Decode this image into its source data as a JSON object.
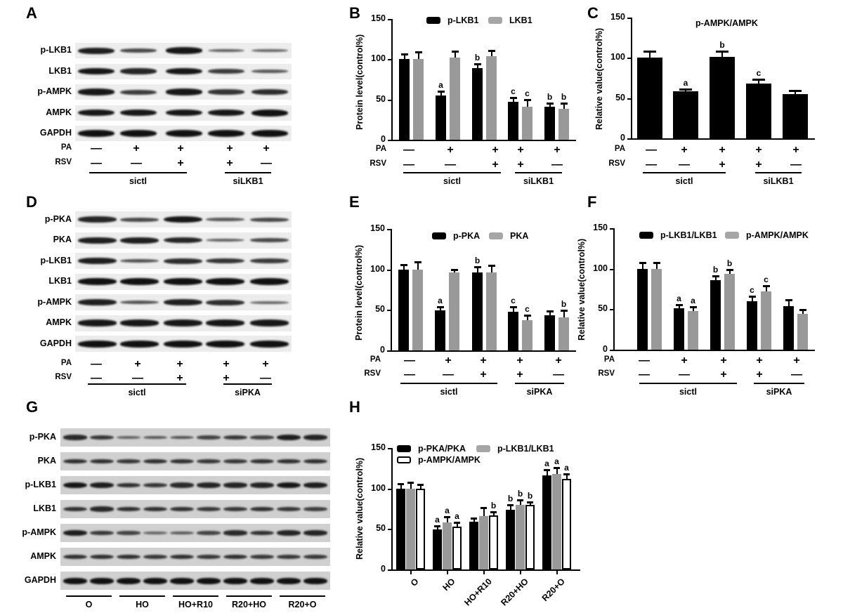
{
  "panels": {
    "A": {
      "letter": "A",
      "blot_labels": [
        "p-LKB1",
        "LKB1",
        "p-AMPK",
        "AMPK",
        "GAPDH"
      ],
      "conditions": {
        "PA": [
          "—",
          "+",
          "+",
          "+",
          "+"
        ],
        "RSV": [
          "—",
          "—",
          "+",
          "+",
          "—"
        ]
      },
      "groups": [
        "sictl",
        "siLKB1"
      ],
      "row_labels": [
        "PA",
        "RSV"
      ]
    },
    "B": {
      "letter": "B"
    },
    "C": {
      "letter": "C"
    },
    "D": {
      "letter": "D",
      "blot_labels": [
        "p-PKA",
        "PKA",
        "p-LKB1",
        "LKB1",
        "p-AMPK",
        "AMPK",
        "GAPDH"
      ],
      "conditions": {
        "PA": [
          "—",
          "+",
          "+",
          "+",
          "+"
        ],
        "RSV": [
          "—",
          "—",
          "+",
          "+",
          "—"
        ]
      },
      "groups": [
        "sictl",
        "siPKA"
      ],
      "row_labels": [
        "PA",
        "RSV"
      ]
    },
    "E": {
      "letter": "E"
    },
    "F": {
      "letter": "F"
    },
    "G": {
      "letter": "G",
      "blot_labels": [
        "p-PKA",
        "PKA",
        "p-LKB1",
        "LKB1",
        "p-AMPK",
        "AMPK",
        "GAPDH"
      ],
      "groups": [
        "O",
        "HO",
        "HO+R10",
        "R20+HO",
        "R20+O"
      ]
    },
    "H": {
      "letter": "H"
    }
  },
  "colors": {
    "black_series": "#000000",
    "gray_series": "#999999",
    "white_series": "#ffffff"
  },
  "chart_data": [
    {
      "panel": "B",
      "type": "bar",
      "title": "",
      "ylabel": "Protein level(control%)",
      "ylim": [
        0,
        150
      ],
      "yticks": [
        0,
        50,
        100,
        150
      ],
      "categories": [
        "PA−/RSV− sictl",
        "PA+/RSV− sictl",
        "PA+/RSV+ sictl",
        "PA+/RSV+ siLKB1",
        "PA+/RSV− siLKB1"
      ],
      "conditions": {
        "PA": [
          "—",
          "+",
          "+",
          "+",
          "+"
        ],
        "RSV": [
          "—",
          "—",
          "+",
          "+",
          "—"
        ]
      },
      "groups": [
        "sictl",
        "siLKB1"
      ],
      "row_labels": [
        "PA",
        "RSV"
      ],
      "legend": [
        "p-LKB1",
        "LKB1"
      ],
      "legend_position": "top",
      "series": [
        {
          "name": "p-LKB1",
          "color": "#000000",
          "values": [
            100,
            55,
            89,
            47,
            41
          ],
          "errors": [
            7,
            6,
            6,
            6,
            5
          ],
          "sig": [
            "",
            "a",
            "b",
            "c",
            "b"
          ]
        },
        {
          "name": "LKB1",
          "color": "#999999",
          "values": [
            100,
            102,
            104,
            41,
            38
          ],
          "errors": [
            10,
            9,
            8,
            10,
            8
          ],
          "sig": [
            "",
            "",
            "",
            "c",
            "b"
          ]
        }
      ]
    },
    {
      "panel": "C",
      "type": "bar",
      "title": "p-AMPK/AMPK",
      "ylabel": "Relative value(control%)",
      "ylim": [
        0,
        150
      ],
      "yticks": [
        0,
        50,
        100,
        150
      ],
      "categories": [
        "PA−/RSV− sictl",
        "PA+/RSV− sictl",
        "PA+/RSV+ sictl",
        "PA+/RSV+ siLKB1",
        "PA+/RSV− siLKB1"
      ],
      "conditions": {
        "PA": [
          "—",
          "+",
          "+",
          "+",
          "+"
        ],
        "RSV": [
          "—",
          "—",
          "+",
          "+",
          "—"
        ]
      },
      "groups": [
        "sictl",
        "siLKB1"
      ],
      "row_labels": [
        "PA",
        "RSV"
      ],
      "series": [
        {
          "name": "p-AMPK/AMPK",
          "color": "#000000",
          "values": [
            100,
            58,
            101,
            68,
            55
          ],
          "errors": [
            9,
            4,
            8,
            6,
            5
          ],
          "sig": [
            "",
            "a",
            "b",
            "c",
            ""
          ]
        }
      ]
    },
    {
      "panel": "E",
      "type": "bar",
      "title": "",
      "ylabel": "Protein level(control%)",
      "ylim": [
        0,
        150
      ],
      "yticks": [
        0,
        50,
        100,
        150
      ],
      "categories": [
        "PA−/RSV− sictl",
        "PA+/RSV− sictl",
        "PA+/RSV+ sictl",
        "PA+/RSV+ siPKA",
        "PA+/RSV− siPKA"
      ],
      "conditions": {
        "PA": [
          "—",
          "+",
          "+",
          "+",
          "+"
        ],
        "RSV": [
          "—",
          "—",
          "+",
          "+",
          "—"
        ]
      },
      "groups": [
        "sictl",
        "siPKA"
      ],
      "row_labels": [
        "PA",
        "RSV"
      ],
      "legend": [
        "p-PKA",
        "PKA"
      ],
      "legend_position": "top",
      "series": [
        {
          "name": "p-PKA",
          "color": "#000000",
          "values": [
            100,
            49,
            96,
            48,
            43
          ],
          "errors": [
            7,
            6,
            8,
            7,
            6
          ],
          "sig": [
            "",
            "a",
            "b",
            "c",
            ""
          ]
        },
        {
          "name": "PKA",
          "color": "#999999",
          "values": [
            100,
            96,
            96,
            37,
            41
          ],
          "errors": [
            10,
            5,
            10,
            7,
            9
          ],
          "sig": [
            "",
            "",
            "",
            "c",
            "b"
          ]
        }
      ]
    },
    {
      "panel": "F",
      "type": "bar",
      "title": "",
      "ylabel": "Relative value(control%)",
      "ylim": [
        0,
        150
      ],
      "yticks": [
        0,
        50,
        100,
        150
      ],
      "categories": [
        "PA−/RSV− sictl",
        "PA+/RSV− sictl",
        "PA+/RSV+ sictl",
        "PA+/RSV+ siPKA",
        "PA+/RSV− siPKA"
      ],
      "conditions": {
        "PA": [
          "—",
          "+",
          "+",
          "+",
          "+"
        ],
        "RSV": [
          "—",
          "—",
          "+",
          "+",
          "—"
        ]
      },
      "groups": [
        "sictl",
        "siPKA"
      ],
      "row_labels": [
        "PA",
        "RSV"
      ],
      "legend": [
        "p-LKB1/LKB1",
        "p-AMPK/AMPK"
      ],
      "legend_position": "top",
      "series": [
        {
          "name": "p-LKB1/LKB1",
          "color": "#000000",
          "values": [
            100,
            51,
            86,
            60,
            54
          ],
          "errors": [
            8,
            5,
            6,
            7,
            8
          ],
          "sig": [
            "",
            "a",
            "b",
            "c",
            ""
          ]
        },
        {
          "name": "p-AMPK/AMPK",
          "color": "#999999",
          "values": [
            100,
            48,
            94,
            72,
            44
          ],
          "errors": [
            8,
            6,
            6,
            8,
            6
          ],
          "sig": [
            "",
            "a",
            "b",
            "c",
            ""
          ]
        }
      ]
    },
    {
      "panel": "H",
      "type": "bar",
      "title": "",
      "ylabel": "Relative value(control%)",
      "ylim": [
        0,
        150
      ],
      "yticks": [
        0,
        50,
        100,
        150
      ],
      "categories": [
        "O",
        "HO",
        "HO+R10",
        "R20+HO",
        "R20+O"
      ],
      "legend": [
        "p-PKA/PKA",
        "p-LKB1/LKB1",
        "p-AMPK/AMPK"
      ],
      "legend_position": "top",
      "series": [
        {
          "name": "p-PKA/PKA",
          "color": "#000000",
          "values": [
            100,
            49,
            59,
            74,
            116
          ],
          "errors": [
            7,
            6,
            5,
            7,
            8
          ],
          "sig": [
            "",
            "a",
            "",
            "b",
            "a"
          ]
        },
        {
          "name": "p-LKB1/LKB1",
          "color": "#999999",
          "values": [
            100,
            58,
            66,
            80,
            118
          ],
          "errors": [
            8,
            8,
            11,
            7,
            9
          ],
          "sig": [
            "",
            "a",
            "",
            "b",
            "a"
          ]
        },
        {
          "name": "p-AMPK/AMPK",
          "color": "#ffffff",
          "values": [
            100,
            53,
            67,
            80,
            112
          ],
          "errors": [
            6,
            6,
            5,
            4,
            7
          ],
          "sig": [
            "",
            "a",
            "b",
            "b",
            "a"
          ]
        }
      ]
    }
  ]
}
